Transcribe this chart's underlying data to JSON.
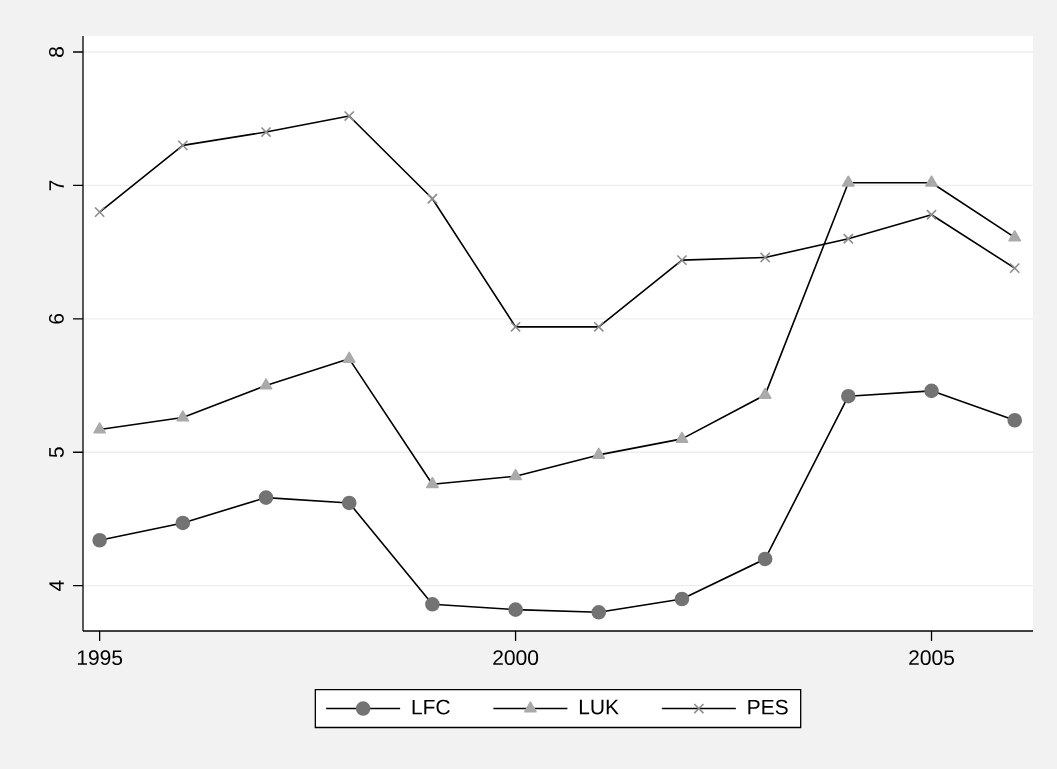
{
  "chart_data": {
    "type": "line",
    "x": [
      1995,
      1996,
      1997,
      1998,
      1999,
      2000,
      2001,
      2002,
      2003,
      2004,
      2005,
      2006
    ],
    "series": [
      {
        "name": "LFC",
        "color": "#737373",
        "marker": "circle",
        "values": [
          4.34,
          4.47,
          4.66,
          4.62,
          3.86,
          3.82,
          3.8,
          3.9,
          4.2,
          5.42,
          5.46,
          5.24
        ]
      },
      {
        "name": "LUK",
        "color": "#aaaaaa",
        "marker": "triangle",
        "values": [
          5.17,
          5.26,
          5.5,
          5.7,
          4.76,
          4.82,
          4.98,
          5.1,
          5.43,
          7.02,
          7.02,
          6.61
        ]
      },
      {
        "name": "PES",
        "color": "#8c8c8c",
        "marker": "cross",
        "values": [
          6.8,
          7.3,
          7.4,
          7.52,
          6.9,
          5.94,
          5.94,
          6.44,
          6.46,
          6.6,
          6.78,
          6.38
        ]
      }
    ],
    "xlim": [
      1994.8,
      2006.22
    ],
    "ylim": [
      3.66,
      8.12
    ],
    "xticks": [
      1995,
      2000,
      2005
    ],
    "yticks": [
      4,
      5,
      6,
      7,
      8
    ],
    "grid": "y",
    "legend": "bottom",
    "line_style": "solid"
  }
}
